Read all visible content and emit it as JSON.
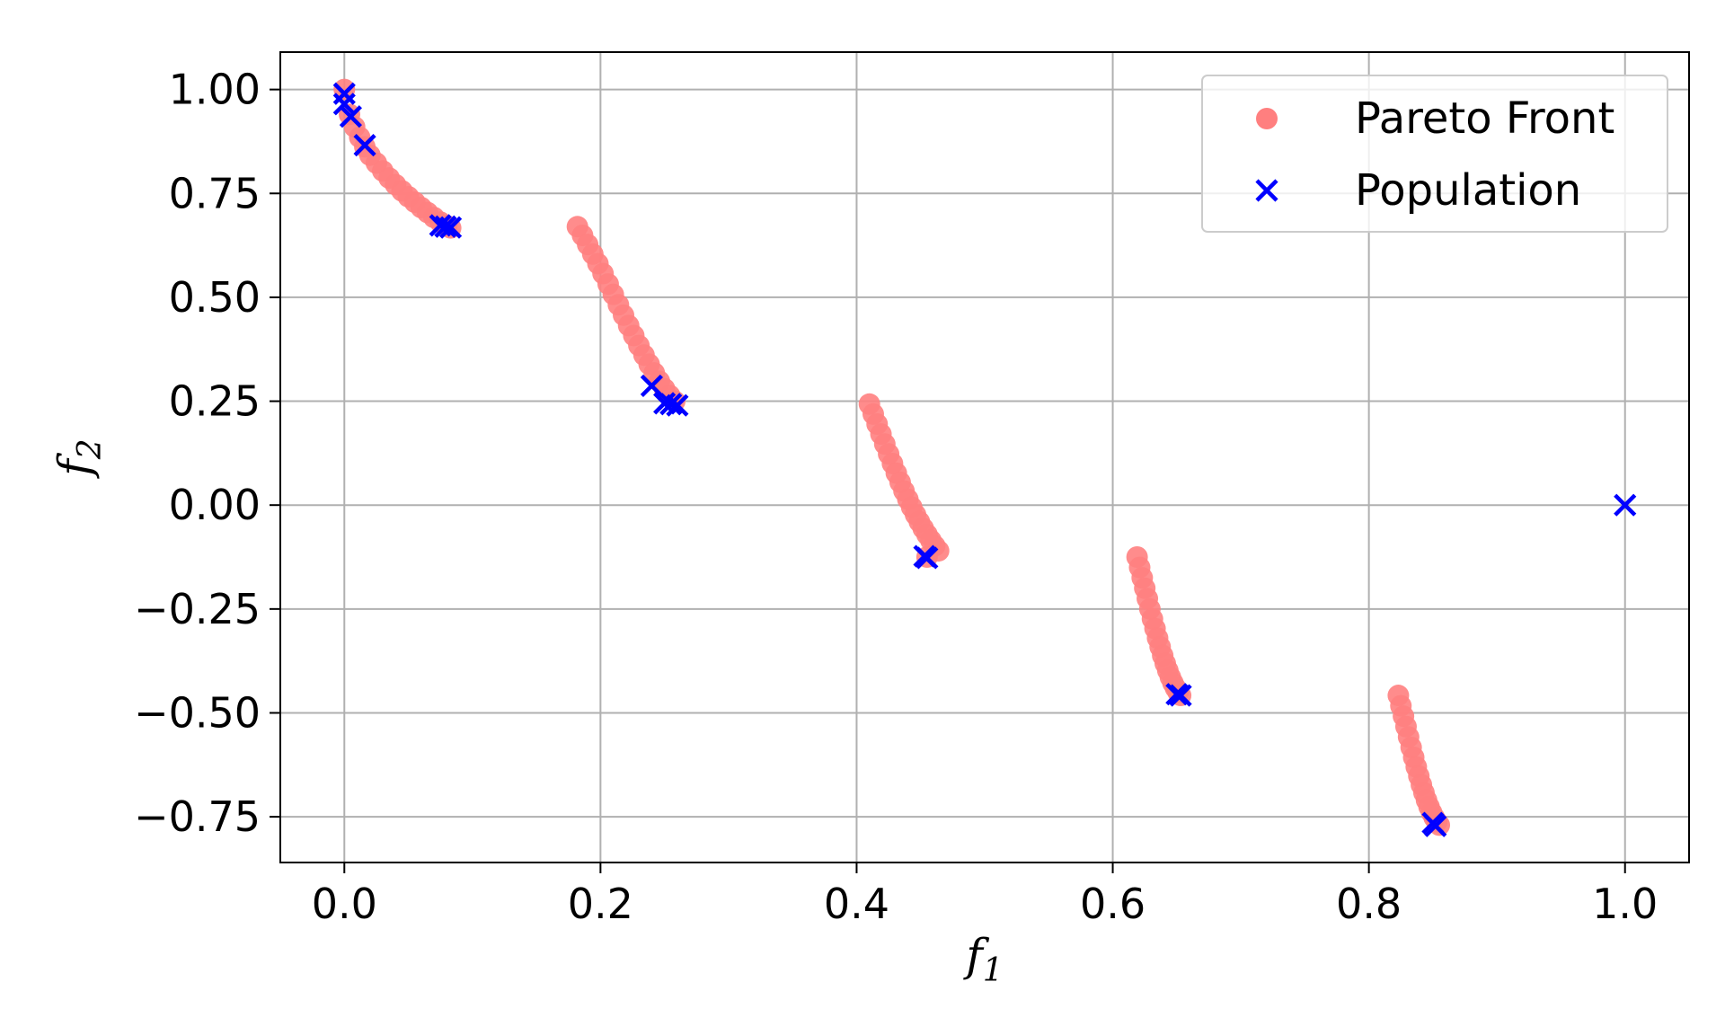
{
  "chart_data": {
    "type": "scatter",
    "xlabel": "f",
    "xlabel_sub": "1",
    "ylabel": "f",
    "ylabel_sub": "2",
    "xlim": [
      -0.05,
      1.05
    ],
    "ylim": [
      -0.86,
      1.09
    ],
    "grid": true,
    "legend_position": "top-right",
    "x_ticks": [
      0.0,
      0.2,
      0.4,
      0.6,
      0.8,
      1.0
    ],
    "x_tick_labels": [
      "0.0",
      "0.2",
      "0.4",
      "0.6",
      "0.8",
      "1.0"
    ],
    "y_ticks": [
      1.0,
      0.75,
      0.5,
      0.25,
      0.0,
      -0.25,
      -0.5,
      -0.75
    ],
    "y_tick_labels": [
      "1.00",
      "0.75",
      "0.50",
      "0.25",
      "0.00",
      "−0.25",
      "−0.50",
      "−0.75"
    ],
    "series": [
      {
        "name": "Pareto Front",
        "marker": "circle",
        "color": "#ff7f7f",
        "points": [
          [
            0.0,
            1.0
          ],
          [
            0.004,
            0.94
          ],
          [
            0.008,
            0.91
          ],
          [
            0.012,
            0.885
          ],
          [
            0.016,
            0.862
          ],
          [
            0.02,
            0.842
          ],
          [
            0.025,
            0.823
          ],
          [
            0.03,
            0.804
          ],
          [
            0.035,
            0.787
          ],
          [
            0.04,
            0.771
          ],
          [
            0.045,
            0.756
          ],
          [
            0.05,
            0.742
          ],
          [
            0.055,
            0.729
          ],
          [
            0.06,
            0.716
          ],
          [
            0.065,
            0.704
          ],
          [
            0.07,
            0.692
          ],
          [
            0.075,
            0.681
          ],
          [
            0.08,
            0.672
          ],
          [
            0.083,
            0.667
          ],
          [
            0.182,
            0.67
          ],
          [
            0.186,
            0.649
          ],
          [
            0.19,
            0.627
          ],
          [
            0.194,
            0.604
          ],
          [
            0.198,
            0.581
          ],
          [
            0.202,
            0.557
          ],
          [
            0.206,
            0.532
          ],
          [
            0.21,
            0.507
          ],
          [
            0.214,
            0.482
          ],
          [
            0.218,
            0.457
          ],
          [
            0.222,
            0.432
          ],
          [
            0.226,
            0.408
          ],
          [
            0.23,
            0.384
          ],
          [
            0.234,
            0.361
          ],
          [
            0.238,
            0.339
          ],
          [
            0.242,
            0.318
          ],
          [
            0.246,
            0.298
          ],
          [
            0.25,
            0.28
          ],
          [
            0.254,
            0.264
          ],
          [
            0.258,
            0.25
          ],
          [
            0.41,
            0.243
          ],
          [
            0.413,
            0.219
          ],
          [
            0.416,
            0.195
          ],
          [
            0.419,
            0.171
          ],
          [
            0.422,
            0.147
          ],
          [
            0.425,
            0.123
          ],
          [
            0.428,
            0.1
          ],
          [
            0.431,
            0.077
          ],
          [
            0.434,
            0.055
          ],
          [
            0.437,
            0.034
          ],
          [
            0.44,
            0.014
          ],
          [
            0.443,
            -0.005
          ],
          [
            0.446,
            -0.023
          ],
          [
            0.449,
            -0.04
          ],
          [
            0.452,
            -0.056
          ],
          [
            0.455,
            -0.071
          ],
          [
            0.458,
            -0.085
          ],
          [
            0.461,
            -0.098
          ],
          [
            0.464,
            -0.11
          ],
          [
            0.455,
            -0.125
          ],
          [
            0.619,
            -0.125
          ],
          [
            0.621,
            -0.15
          ],
          [
            0.623,
            -0.175
          ],
          [
            0.625,
            -0.2
          ],
          [
            0.627,
            -0.225
          ],
          [
            0.629,
            -0.25
          ],
          [
            0.631,
            -0.274
          ],
          [
            0.633,
            -0.297
          ],
          [
            0.635,
            -0.32
          ],
          [
            0.637,
            -0.341
          ],
          [
            0.639,
            -0.362
          ],
          [
            0.641,
            -0.381
          ],
          [
            0.643,
            -0.398
          ],
          [
            0.645,
            -0.414
          ],
          [
            0.647,
            -0.428
          ],
          [
            0.649,
            -0.44
          ],
          [
            0.651,
            -0.45
          ],
          [
            0.653,
            -0.458
          ],
          [
            0.823,
            -0.458
          ],
          [
            0.825,
            -0.483
          ],
          [
            0.827,
            -0.508
          ],
          [
            0.829,
            -0.533
          ],
          [
            0.831,
            -0.558
          ],
          [
            0.833,
            -0.583
          ],
          [
            0.835,
            -0.607
          ],
          [
            0.837,
            -0.63
          ],
          [
            0.839,
            -0.652
          ],
          [
            0.841,
            -0.673
          ],
          [
            0.843,
            -0.692
          ],
          [
            0.845,
            -0.71
          ],
          [
            0.847,
            -0.726
          ],
          [
            0.849,
            -0.74
          ],
          [
            0.851,
            -0.752
          ],
          [
            0.853,
            -0.762
          ],
          [
            0.855,
            -0.77
          ]
        ]
      },
      {
        "name": "Population",
        "marker": "x",
        "color": "#0000ff",
        "points": [
          [
            0.0,
            0.99
          ],
          [
            0.0,
            0.965
          ],
          [
            0.005,
            0.935
          ],
          [
            0.016,
            0.866
          ],
          [
            0.075,
            0.673
          ],
          [
            0.079,
            0.67
          ],
          [
            0.083,
            0.668
          ],
          [
            0.24,
            0.287
          ],
          [
            0.25,
            0.245
          ],
          [
            0.255,
            0.243
          ],
          [
            0.26,
            0.24
          ],
          [
            0.453,
            -0.123
          ],
          [
            0.455,
            -0.127
          ],
          [
            0.65,
            -0.455
          ],
          [
            0.653,
            -0.458
          ],
          [
            0.85,
            -0.765
          ],
          [
            0.852,
            -0.772
          ],
          [
            1.0,
            0.0
          ]
        ]
      }
    ]
  }
}
